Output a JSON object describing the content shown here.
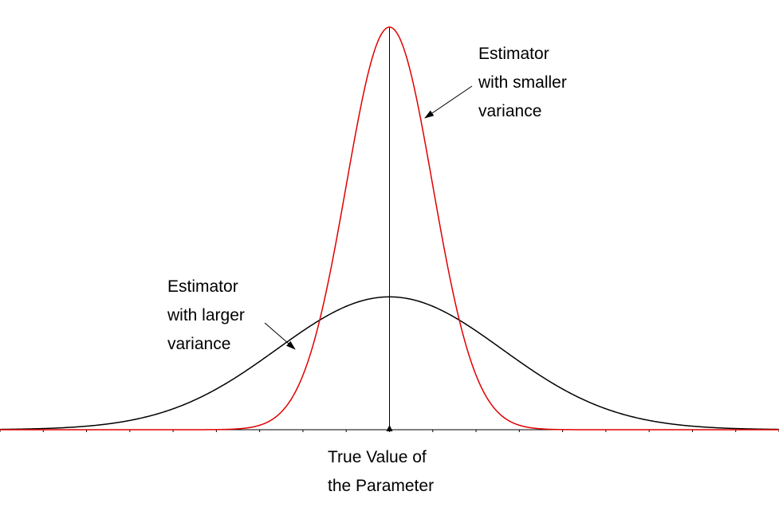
{
  "chart_data": {
    "type": "line",
    "title": "",
    "xlabel": "",
    "ylabel": "",
    "grid": false,
    "x_tick_count": 18,
    "series": [
      {
        "label_lines": [
          "Estimator",
          "with smaller",
          "variance"
        ],
        "color": "#e00000",
        "mean": 0,
        "sd": 1,
        "peak": 1.0
      },
      {
        "label_lines": [
          "Estimator",
          "with larger",
          "variance"
        ],
        "color": "#000000",
        "mean": 0,
        "sd": 2.6,
        "peak": 0.33
      }
    ],
    "reference": {
      "label_lines": [
        "True Value of",
        "the Parameter"
      ],
      "x": 0,
      "color": "#000000"
    },
    "xlim": [
      -9,
      9
    ],
    "ylim": [
      0,
      1
    ]
  }
}
